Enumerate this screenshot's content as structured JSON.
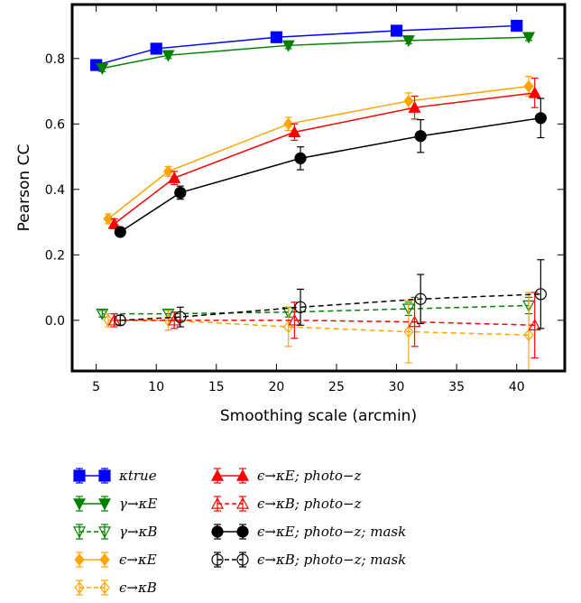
{
  "chart_data": {
    "type": "line",
    "xlabel": "Smoothing scale (arcmin)",
    "ylabel": "Pearson CC",
    "xlim": [
      3,
      44
    ],
    "ylim": [
      -0.155,
      0.965
    ],
    "xticks": [
      5,
      10,
      15,
      20,
      25,
      30,
      35,
      40
    ],
    "yticks": [
      0.0,
      0.2,
      0.4,
      0.6,
      0.8
    ],
    "ytick_labels": [
      "0.0",
      "0.2",
      "0.4",
      "0.6",
      "0.8"
    ],
    "grid": false,
    "legend_position": "bottom",
    "series": [
      {
        "name": "κtrue",
        "color": "#0000ff",
        "marker": "square",
        "filled": true,
        "dashed": false,
        "x": [
          5,
          10,
          20,
          30,
          40
        ],
        "y": [
          0.78,
          0.83,
          0.865,
          0.885,
          0.9
        ],
        "err": [
          0.01,
          0.01,
          0.01,
          0.01,
          0.01
        ]
      },
      {
        "name": "γ→κE",
        "color": "#008000",
        "marker": "triangle-down",
        "filled": true,
        "dashed": false,
        "x": [
          5.5,
          11,
          21,
          31,
          41
        ],
        "y": [
          0.77,
          0.81,
          0.84,
          0.855,
          0.865
        ],
        "err": [
          0.01,
          0.01,
          0.01,
          0.01,
          0.01
        ]
      },
      {
        "name": "γ→κB",
        "color": "#008000",
        "marker": "triangle-down",
        "filled": false,
        "dashed": true,
        "x": [
          5.5,
          11,
          21,
          31,
          41
        ],
        "y": [
          0.02,
          0.02,
          0.025,
          0.035,
          0.045
        ],
        "err": [
          0.01,
          0.012,
          0.015,
          0.02,
          0.025
        ]
      },
      {
        "name": "ϵ→κE",
        "color": "#ffa500",
        "marker": "diamond",
        "filled": true,
        "dashed": false,
        "x": [
          6,
          11,
          21,
          31,
          41
        ],
        "y": [
          0.31,
          0.455,
          0.6,
          0.67,
          0.715
        ],
        "err": [
          0.015,
          0.015,
          0.02,
          0.025,
          0.03
        ]
      },
      {
        "name": "ϵ→κB",
        "color": "#ffa500",
        "marker": "diamond",
        "filled": false,
        "dashed": true,
        "x": [
          6,
          11,
          21,
          31,
          41
        ],
        "y": [
          0.0,
          0.0,
          -0.02,
          -0.035,
          -0.045
        ],
        "err": [
          0.02,
          0.03,
          0.06,
          0.095,
          0.13
        ]
      },
      {
        "name": "ϵ→κE; photo−z",
        "color": "#ff0000",
        "marker": "triangle-up",
        "filled": true,
        "dashed": false,
        "x": [
          6.5,
          11.5,
          21.5,
          31.5,
          41.5
        ],
        "y": [
          0.295,
          0.435,
          0.575,
          0.65,
          0.695
        ],
        "err": [
          0.015,
          0.02,
          0.025,
          0.035,
          0.045
        ]
      },
      {
        "name": "ϵ→κB; photo−z",
        "color": "#ff0000",
        "marker": "triangle-up",
        "filled": false,
        "dashed": true,
        "x": [
          6.5,
          11.5,
          21.5,
          31.5,
          41.5
        ],
        "y": [
          0.0,
          0.0,
          0.0,
          -0.005,
          -0.015
        ],
        "err": [
          0.02,
          0.025,
          0.055,
          0.075,
          0.1
        ]
      },
      {
        "name": "ϵ→κE; photo−z; mask",
        "color": "#000000",
        "marker": "circle",
        "filled": true,
        "dashed": false,
        "x": [
          7,
          12,
          22,
          32,
          42
        ],
        "y": [
          0.27,
          0.39,
          0.495,
          0.563,
          0.618
        ],
        "err": [
          0.012,
          0.02,
          0.035,
          0.05,
          0.06
        ]
      },
      {
        "name": "ϵ→κB; photo−z; mask",
        "color": "#000000",
        "marker": "circle",
        "filled": false,
        "dashed": true,
        "x": [
          7,
          12,
          22,
          32,
          42
        ],
        "y": [
          0.0,
          0.01,
          0.04,
          0.065,
          0.08
        ],
        "err": [
          0.015,
          0.03,
          0.055,
          0.075,
          0.105
        ]
      }
    ]
  }
}
